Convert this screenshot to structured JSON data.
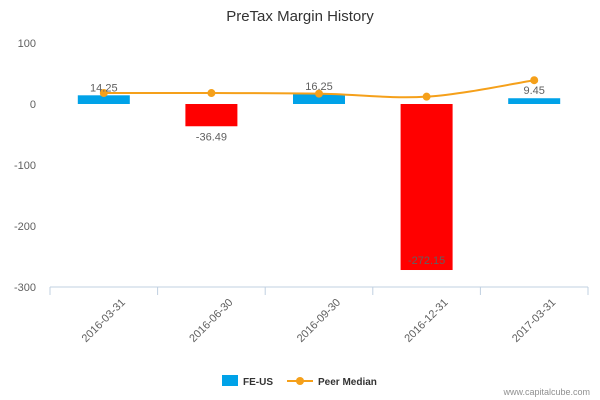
{
  "chart_data": {
    "type": "bar",
    "title": "PreTax Margin History",
    "categories": [
      "2016-03-31",
      "2016-06-30",
      "2016-09-30",
      "2016-12-31",
      "2017-03-31"
    ],
    "series": [
      {
        "name": "FE-US",
        "kind": "bar",
        "values": [
          14.25,
          -36.49,
          16.25,
          -272.15,
          9.45
        ],
        "labels": [
          "14.25",
          "-36.49",
          "16.25",
          "-272.15",
          "9.45"
        ],
        "positive_color": "#00a2e8",
        "negative_color": "#ff0000"
      },
      {
        "name": "Peer Median",
        "kind": "line",
        "values": [
          18,
          18,
          17,
          12,
          39
        ],
        "color": "#f5a01a"
      }
    ],
    "ylim": [
      -300,
      100
    ],
    "yticks": [
      100,
      0,
      -100,
      -200,
      -300
    ],
    "ytick_labels": [
      "100",
      "0",
      "-100",
      "-200",
      "-300"
    ],
    "xlabel": "",
    "ylabel": "",
    "legend_position": "bottom-center",
    "grid": false
  },
  "credit": "www.capitalcube.com",
  "colors": {
    "title": "#333333",
    "axis": "#c0d0e0",
    "text": "#606060"
  }
}
